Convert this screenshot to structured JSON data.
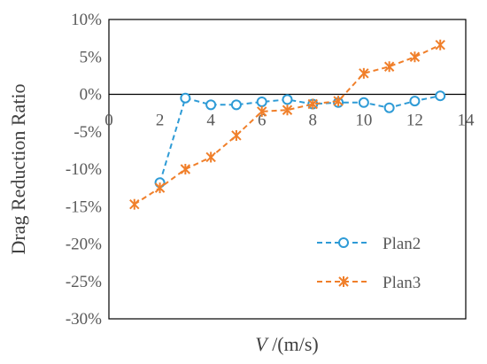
{
  "chart_data": {
    "type": "line",
    "title": "",
    "xlabel_var": "V",
    "xlabel_unit": " /(m/s)",
    "ylabel": "Drag Reduction Ratio",
    "xlim": [
      0,
      14
    ],
    "ylim": [
      -30,
      10
    ],
    "x_ticks": [
      0,
      2,
      4,
      6,
      8,
      10,
      12,
      14
    ],
    "x_tick_labels": [
      "0",
      "2",
      "4",
      "6",
      "8",
      "10",
      "12",
      "14"
    ],
    "y_ticks": [
      10,
      5,
      0,
      -5,
      -10,
      -15,
      -20,
      -25,
      -30
    ],
    "y_tick_labels": [
      "10%",
      "5%",
      "0%",
      "-5%",
      "-10%",
      "-15%",
      "-20%",
      "-25%",
      "-30%"
    ],
    "grid": false,
    "legend_position": "bottom-right",
    "series": [
      {
        "name": "Plan2",
        "marker": "circle",
        "line_style": "dashed",
        "color": "#2E9BD6",
        "x": [
          2,
          3,
          4,
          5,
          6,
          7,
          8,
          9,
          10,
          11,
          12,
          13
        ],
        "y": [
          -11.8,
          -0.5,
          -1.4,
          -1.4,
          -1.0,
          -0.7,
          -1.3,
          -1.1,
          -1.1,
          -1.8,
          -0.9,
          -0.2
        ]
      },
      {
        "name": "Plan3",
        "marker": "asterisk",
        "line_style": "dashed",
        "color": "#F07F2A",
        "x": [
          1,
          2,
          3,
          4,
          5,
          6,
          7,
          8,
          9,
          10,
          11,
          12,
          13
        ],
        "y": [
          -14.7,
          -12.5,
          -10.0,
          -8.4,
          -5.5,
          -2.3,
          -2.1,
          -1.3,
          -0.9,
          2.8,
          3.7,
          5.0,
          6.6
        ]
      }
    ]
  }
}
